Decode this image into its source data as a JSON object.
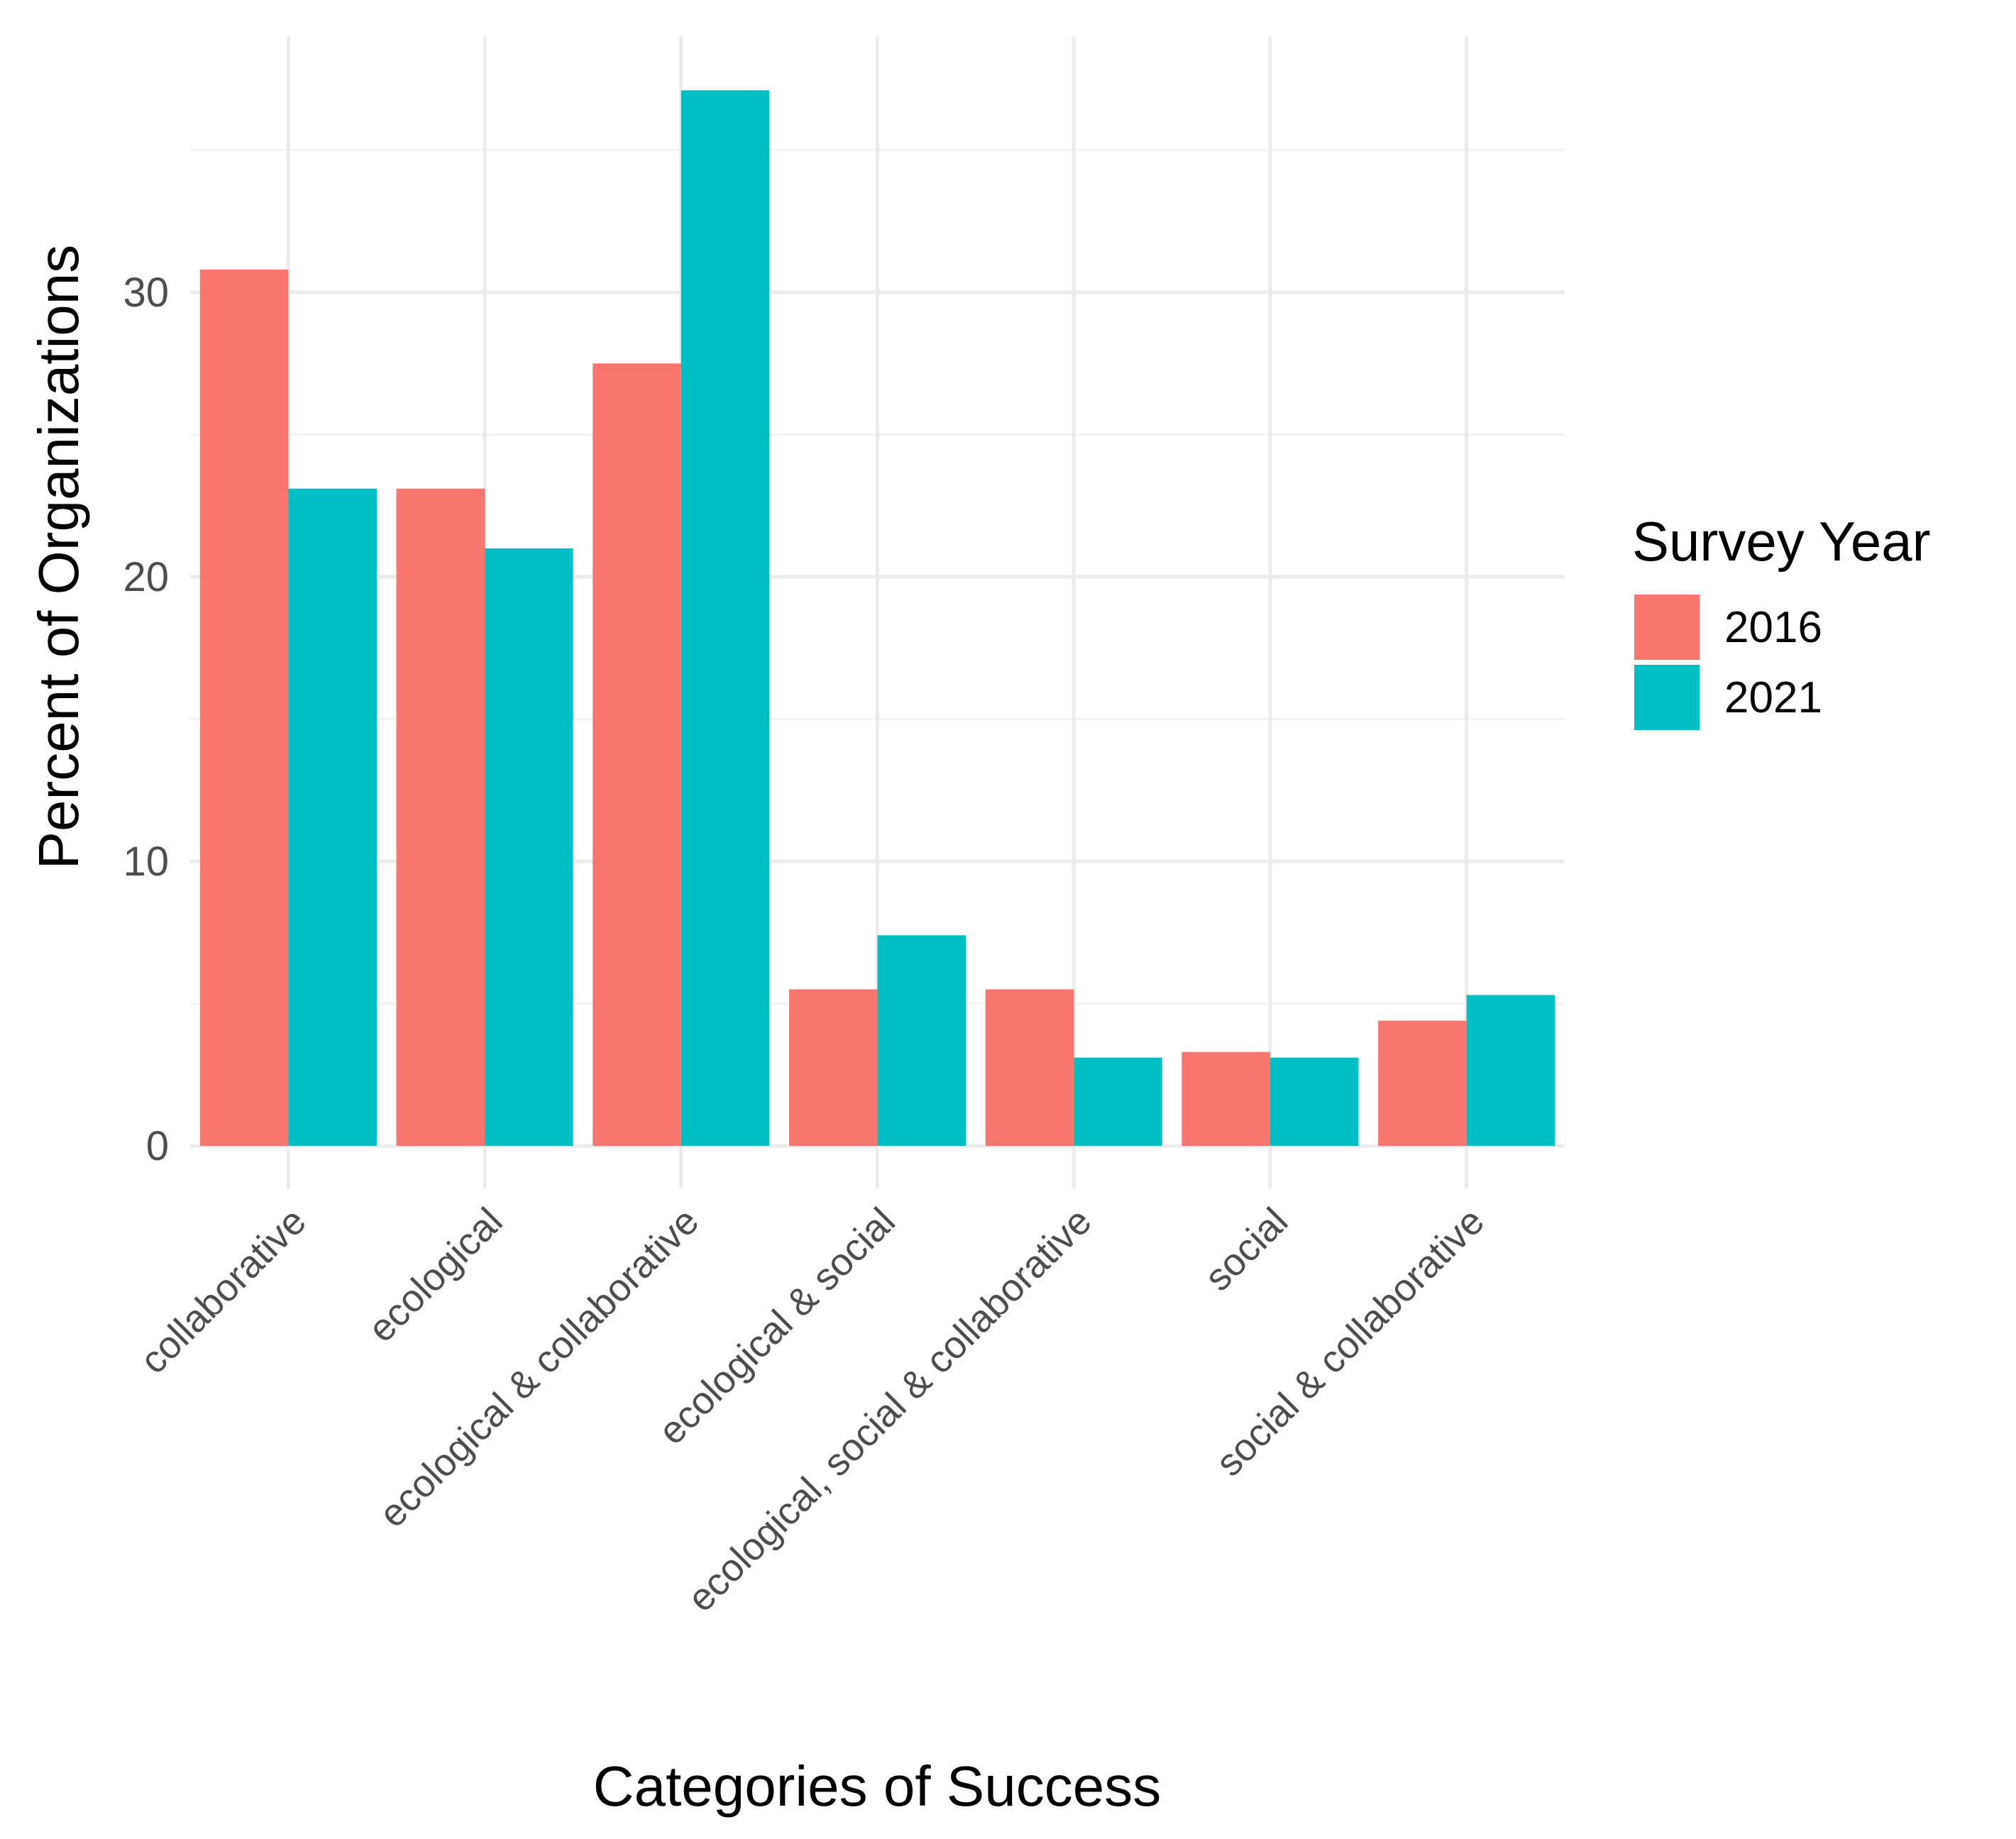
{
  "chart_data": {
    "type": "bar",
    "title": "",
    "xlabel": "Categories of Success",
    "ylabel": "Percent of Organizations",
    "ylim": [
      0,
      39
    ],
    "yticks": [
      0,
      10,
      20,
      30
    ],
    "grid": true,
    "legend_position": "right",
    "legend_title": "Survey Year",
    "categories": [
      "collaborative",
      "ecological",
      "ecological & collaborative",
      "ecological & social",
      "ecological, social & collaborative",
      "social",
      "social & collaborative"
    ],
    "series": [
      {
        "name": "2016",
        "color": "#F8766D",
        "values": [
          30.8,
          23.1,
          27.5,
          5.5,
          5.5,
          3.3,
          4.4
        ]
      },
      {
        "name": "2021",
        "color": "#00BFC4",
        "values": [
          23.1,
          21.0,
          37.1,
          7.4,
          3.1,
          3.1,
          5.3
        ]
      }
    ]
  }
}
